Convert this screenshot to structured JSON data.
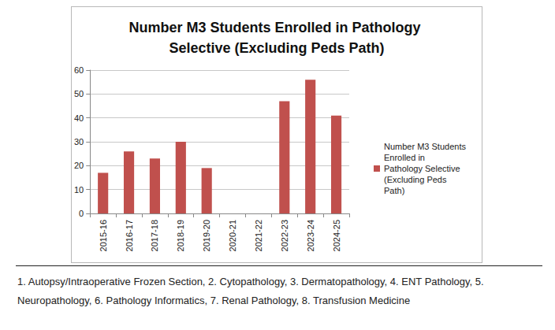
{
  "chart_data": {
    "type": "bar",
    "title": "Number M3 Students Enrolled in Pathology Selective (Excluding Peds Path)",
    "categories": [
      "2015-16",
      "2016-17",
      "2017-18",
      "2018-19",
      "2019-20",
      "2020-21",
      "2021-22",
      "2022-23",
      "2023-24",
      "2024-25"
    ],
    "series": [
      {
        "name": "Number M3 Students Enrolled in Pathology Selective (Excluding Peds Path)",
        "color": "#c0504d",
        "values": [
          17,
          26,
          23,
          30,
          19,
          null,
          null,
          47,
          56,
          41
        ]
      }
    ],
    "ylim": [
      0,
      60
    ],
    "yticks": [
      0,
      10,
      20,
      30,
      40,
      50,
      60
    ],
    "grid": true,
    "legend": "right",
    "annotations": [
      "1. Autopsy/Intraoperative Frozen Section, 2. Cytopathology, 3. Dermatopathology, 4. ENT Pathology, 5. Neuropathology, 6. Pathology Informatics, 7. Renal Pathology, 8. Transfusion Medicine"
    ]
  }
}
